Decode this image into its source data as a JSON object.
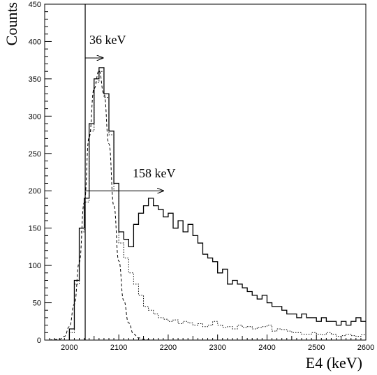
{
  "chart_data": {
    "type": "line",
    "xlabel": "E4 (keV)",
    "ylabel": "Counts",
    "xlim": [
      1950,
      2600
    ],
    "ylim": [
      0,
      450
    ],
    "xticks": [
      2000,
      2100,
      2200,
      2300,
      2400,
      2500,
      2600
    ],
    "yticks": [
      0,
      50,
      100,
      150,
      200,
      250,
      300,
      350,
      400,
      450
    ],
    "grid": false,
    "legend": "none",
    "series": [
      {
        "style": "solid-step",
        "bin_width": 10,
        "x": [
          2000,
          2010,
          2020,
          2030,
          2040,
          2050,
          2060,
          2070,
          2080,
          2090,
          2100,
          2110,
          2120,
          2130,
          2140,
          2150,
          2160,
          2170,
          2180,
          2190,
          2200,
          2210,
          2220,
          2230,
          2240,
          2250,
          2260,
          2270,
          2280,
          2290,
          2300,
          2310,
          2320,
          2330,
          2340,
          2350,
          2360,
          2370,
          2380,
          2390,
          2400,
          2410,
          2420,
          2430,
          2440,
          2450,
          2460,
          2470,
          2480,
          2490,
          2500,
          2510,
          2520,
          2530,
          2540,
          2550,
          2560,
          2570,
          2580,
          2590
        ],
        "values": [
          15,
          80,
          150,
          190,
          290,
          350,
          365,
          330,
          280,
          210,
          145,
          135,
          125,
          155,
          170,
          180,
          190,
          180,
          175,
          165,
          170,
          150,
          160,
          145,
          155,
          140,
          130,
          115,
          110,
          105,
          90,
          95,
          75,
          80,
          75,
          70,
          65,
          60,
          55,
          60,
          50,
          45,
          45,
          40,
          35,
          35,
          30,
          35,
          30,
          30,
          25,
          30,
          25,
          25,
          20,
          25,
          20,
          25,
          30,
          25
        ]
      },
      {
        "style": "dotted-step",
        "bin_width": 10,
        "x": [
          2000,
          2010,
          2020,
          2030,
          2040,
          2050,
          2060,
          2070,
          2080,
          2090,
          2100,
          2110,
          2120,
          2130,
          2140,
          2150,
          2160,
          2170,
          2180,
          2190,
          2200,
          2210,
          2220,
          2230,
          2240,
          2250,
          2260,
          2270,
          2280,
          2290,
          2300,
          2310,
          2320,
          2330,
          2340,
          2350,
          2360,
          2370,
          2380,
          2390,
          2400,
          2410,
          2420,
          2430,
          2440,
          2450,
          2460,
          2470,
          2480,
          2490,
          2500,
          2510,
          2520,
          2530,
          2540,
          2550,
          2560,
          2570,
          2580,
          2590
        ],
        "values": [
          10,
          75,
          145,
          185,
          280,
          345,
          360,
          325,
          275,
          200,
          130,
          110,
          90,
          75,
          60,
          45,
          40,
          35,
          30,
          28,
          25,
          27,
          22,
          25,
          23,
          20,
          22,
          18,
          20,
          25,
          20,
          17,
          18,
          15,
          20,
          17,
          18,
          15,
          17,
          18,
          20,
          12,
          15,
          14,
          12,
          10,
          10,
          8,
          8,
          10,
          8,
          7,
          10,
          8,
          5,
          6,
          8,
          6,
          5,
          7
        ]
      },
      {
        "style": "dashed-curve",
        "x": [
          1950,
          1980,
          1990,
          2000,
          2010,
          2020,
          2030,
          2040,
          2050,
          2060,
          2070,
          2080,
          2090,
          2100,
          2110,
          2120,
          2130,
          2140,
          2150,
          2160,
          2170,
          2180,
          2600
        ],
        "values": [
          0,
          1,
          5,
          18,
          48,
          104,
          184,
          272,
          337,
          361,
          330,
          263,
          180,
          106,
          53,
          23,
          8,
          3,
          1,
          0.3,
          0.1,
          0,
          0
        ]
      }
    ],
    "annotations": [
      {
        "text": "36 keV",
        "arrow_from_x": 2032,
        "arrow_to_x": 2068,
        "y": 378
      },
      {
        "text": "158 keV",
        "arrow_from_x": 2032,
        "arrow_to_x": 2190,
        "y": 200
      }
    ],
    "vertical_line_x": 2032
  }
}
